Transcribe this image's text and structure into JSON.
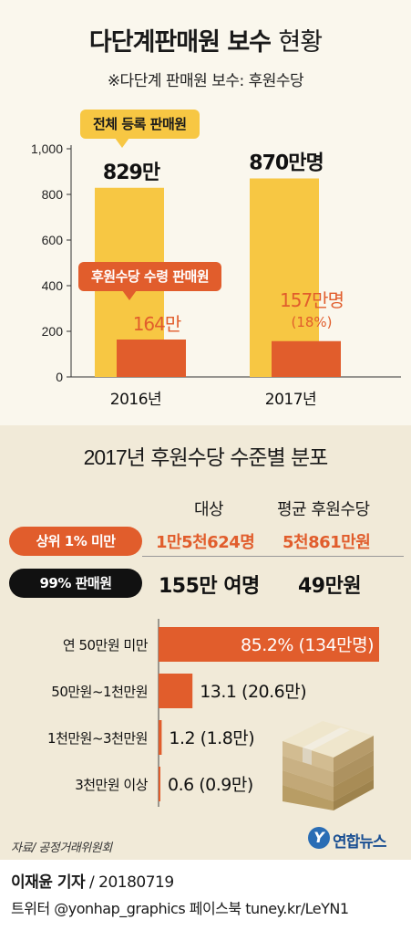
{
  "header": {
    "title_bold": "다단계판매원 보수",
    "title_light": "현황",
    "subtitle": "※다단계 판매원 보수: 후원수당"
  },
  "chart_data": [
    {
      "type": "bar",
      "categories": [
        "2016년",
        "2017년"
      ],
      "ylim": [
        0,
        1000
      ],
      "yticks": [
        "0",
        "200",
        "400",
        "600",
        "800",
        "1,000"
      ],
      "series": [
        {
          "name": "전체 등록 판매원",
          "color": "#f7c743",
          "values": [
            829,
            870
          ],
          "labels": [
            "829만",
            "870만명"
          ]
        },
        {
          "name": "후원수당 수령 판매원",
          "color": "#e15d2c",
          "values": [
            164,
            157
          ],
          "labels": [
            "164만",
            "157만명"
          ],
          "extra_labels": [
            "",
            "(18%)"
          ]
        }
      ]
    },
    {
      "type": "bar",
      "orientation": "horizontal",
      "title": "2017년 후원수당 수준별 분포",
      "categories": [
        "연 50만원 미만",
        "50만원~1천만원",
        "1천만원~3천만원",
        "3천만원 이상"
      ],
      "values": [
        85.2,
        13.1,
        1.2,
        0.6
      ],
      "labels": [
        "85.2% (134만명)",
        "13.1 (20.6만)",
        "1.2 (1.8만)",
        "0.6 (0.9만)"
      ],
      "color": "#e15d2c"
    }
  ],
  "summary": {
    "title_year": "2017년",
    "title_rest": "후원수당 수준별 분포",
    "col_target": "대상",
    "col_avg": "평균 후원수당",
    "rows": [
      {
        "label": "상위 1% 미만",
        "target": "1만5천624명",
        "avg": "5천861만원"
      },
      {
        "label": "99% 판매원",
        "target": "155만 여명",
        "avg": "49만원"
      }
    ]
  },
  "footer": {
    "source": "자료/ 공정거래위원회",
    "logo_mark": "Y",
    "logo_text": "연합뉴스",
    "reporter": "이재윤 기자",
    "date": " / 20180719",
    "social": "트위터 @yonhap_graphics  페이스북 tuney.kr/LeYN1"
  },
  "colors": {
    "yellow": "#f7c743",
    "orange": "#e15d2c",
    "panel_top": "#faf7ed",
    "panel_bottom": "#f1ead8"
  }
}
